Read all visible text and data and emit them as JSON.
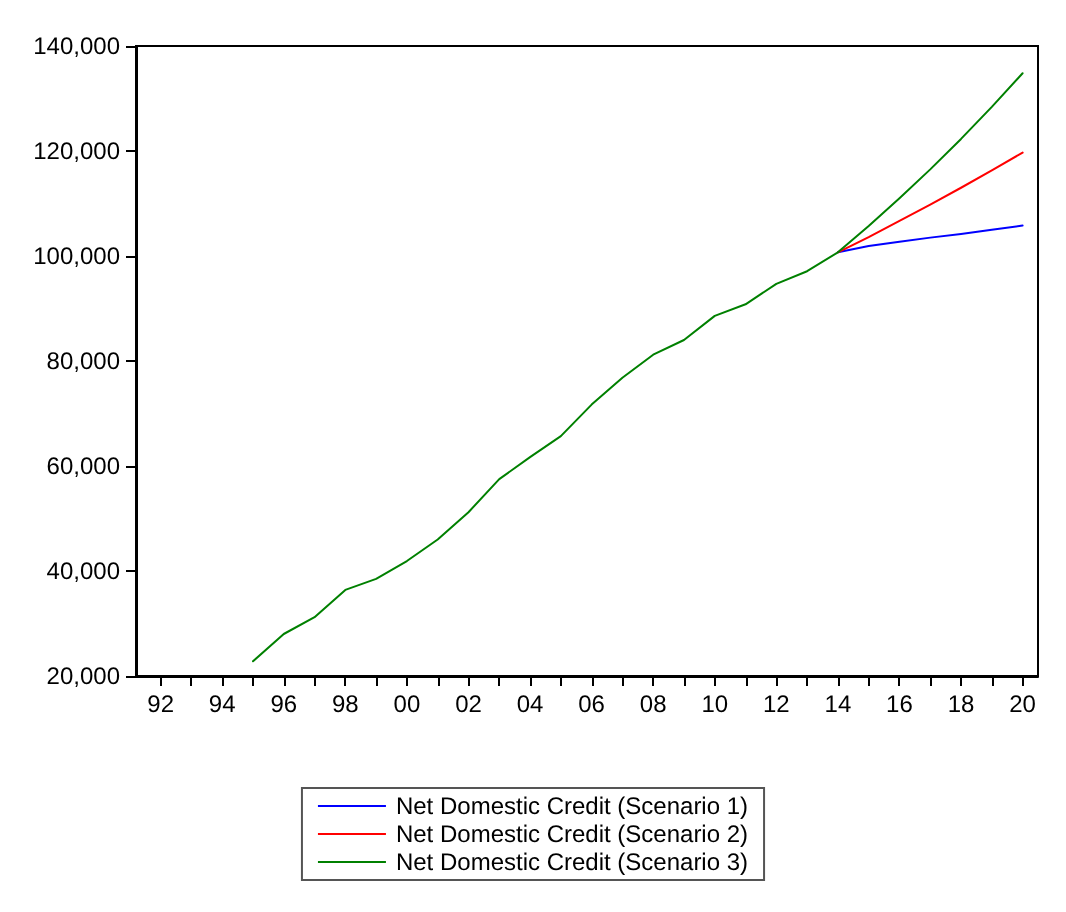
{
  "chart_data": {
    "type": "line",
    "x": [
      1995,
      1996,
      1997,
      1998,
      1999,
      2000,
      2001,
      2002,
      2003,
      2004,
      2005,
      2006,
      2007,
      2008,
      2009,
      2010,
      2011,
      2012,
      2013,
      2014,
      2015,
      2016,
      2017,
      2018,
      2019,
      2020
    ],
    "series": [
      {
        "name": "Net Domestic Credit (Scenario 1)",
        "color": "#0000ff",
        "values": [
          null,
          null,
          null,
          null,
          null,
          null,
          null,
          null,
          null,
          null,
          null,
          null,
          null,
          null,
          null,
          null,
          null,
          null,
          null,
          100700,
          101900,
          102700,
          103500,
          104200,
          105000,
          105800
        ]
      },
      {
        "name": "Net Domestic Credit (Scenario 2)",
        "color": "#ff0000",
        "values": [
          null,
          null,
          null,
          null,
          null,
          null,
          null,
          null,
          null,
          null,
          null,
          null,
          null,
          null,
          null,
          null,
          null,
          null,
          null,
          100700,
          103600,
          106700,
          109800,
          113000,
          116300,
          119700
        ]
      },
      {
        "name": "Net Domestic Credit (Scenario 3)",
        "color": "#008000",
        "values": [
          22800,
          28000,
          31200,
          36400,
          38500,
          41900,
          46000,
          51200,
          57500,
          61700,
          65700,
          71700,
          76800,
          81200,
          84000,
          88600,
          90800,
          94700,
          97100,
          100700,
          105700,
          111000,
          116500,
          122300,
          128400,
          134800
        ]
      }
    ],
    "xlim": [
      1991.2,
      2020.5
    ],
    "xticks": [
      {
        "value": 1992,
        "label": "92"
      },
      {
        "value": 1993,
        "label": null
      },
      {
        "value": 1994,
        "label": "94"
      },
      {
        "value": 1995,
        "label": null
      },
      {
        "value": 1996,
        "label": "96"
      },
      {
        "value": 1997,
        "label": null
      },
      {
        "value": 1998,
        "label": "98"
      },
      {
        "value": 1999,
        "label": null
      },
      {
        "value": 2000,
        "label": "00"
      },
      {
        "value": 2001,
        "label": null
      },
      {
        "value": 2002,
        "label": "02"
      },
      {
        "value": 2003,
        "label": null
      },
      {
        "value": 2004,
        "label": "04"
      },
      {
        "value": 2005,
        "label": null
      },
      {
        "value": 2006,
        "label": "06"
      },
      {
        "value": 2007,
        "label": null
      },
      {
        "value": 2008,
        "label": "08"
      },
      {
        "value": 2009,
        "label": null
      },
      {
        "value": 2010,
        "label": "10"
      },
      {
        "value": 2011,
        "label": null
      },
      {
        "value": 2012,
        "label": "12"
      },
      {
        "value": 2013,
        "label": null
      },
      {
        "value": 2014,
        "label": "14"
      },
      {
        "value": 2015,
        "label": null
      },
      {
        "value": 2016,
        "label": "16"
      },
      {
        "value": 2017,
        "label": null
      },
      {
        "value": 2018,
        "label": "18"
      },
      {
        "value": 2019,
        "label": null
      },
      {
        "value": 2020,
        "label": "20"
      }
    ],
    "ylim": [
      20000,
      140000
    ],
    "yticks": [
      {
        "value": 20000,
        "label": "20,000"
      },
      {
        "value": 40000,
        "label": "40,000"
      },
      {
        "value": 60000,
        "label": "60,000"
      },
      {
        "value": 80000,
        "label": "80,000"
      },
      {
        "value": 100000,
        "label": "100,000"
      },
      {
        "value": 120000,
        "label": "120,000"
      },
      {
        "value": 140000,
        "label": "140,000"
      }
    ],
    "grid": false,
    "legend": "bottom",
    "line_style": "solid"
  }
}
